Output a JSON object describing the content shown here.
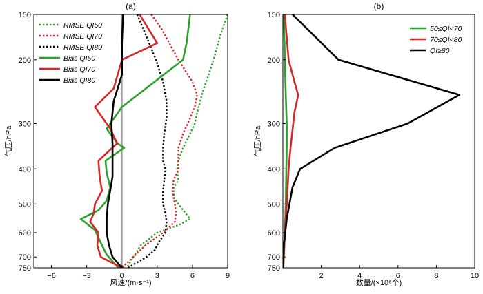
{
  "chart_data": [
    {
      "type": "line",
      "title": "(a)",
      "xlabel": "风速/(m·s⁻¹)",
      "ylabel": "气压/hPa",
      "xlim": [
        -7.5,
        9
      ],
      "ylim": [
        750,
        150
      ],
      "y_scale": "log",
      "x_ticks": [
        -6,
        -3,
        0,
        3,
        6,
        9
      ],
      "y_ticks": [
        150,
        200,
        300,
        400,
        500,
        600,
        700,
        750
      ],
      "reference_line": {
        "x": 0,
        "color": "#a0a0a0"
      },
      "legend_position": "top-left",
      "series": [
        {
          "name": "RMSE QI50",
          "color": "#2ca02c",
          "dash": "dotted",
          "x": [
            9.0,
            8.4,
            7.8,
            6.8,
            6.4,
            6.2,
            5.8,
            5.2,
            4.8,
            4.7,
            4.8,
            4.4,
            4.4,
            4.8,
            5.8,
            4.9,
            3.0,
            1.6,
            0.4
          ],
          "y": [
            150,
            170,
            200,
            250,
            280,
            300,
            320,
            350,
            380,
            400,
            430,
            450,
            480,
            500,
            550,
            570,
            600,
            650,
            750
          ]
        },
        {
          "name": "RMSE QI70",
          "color": "#d62728",
          "dash": "dotted",
          "x": [
            2.5,
            3.4,
            4.8,
            6.0,
            6.4,
            6.2,
            5.8,
            5.2,
            4.8,
            4.8,
            4.8,
            4.4,
            4.3,
            4.5,
            4.6,
            4.5,
            3.5,
            2.0,
            0.0
          ],
          "y": [
            150,
            165,
            200,
            230,
            250,
            270,
            290,
            320,
            350,
            380,
            400,
            430,
            460,
            500,
            530,
            560,
            600,
            650,
            750
          ]
        },
        {
          "name": "RMSE QI80",
          "color": "#000000",
          "dash": "dotted",
          "x": [
            1.3,
            2.0,
            2.9,
            3.5,
            3.8,
            3.8,
            3.6,
            3.5,
            3.5,
            3.7,
            3.6,
            3.5,
            3.5,
            3.7,
            3.8,
            3.7,
            3.1,
            2.8,
            2.1,
            0.5
          ],
          "y": [
            150,
            170,
            200,
            230,
            260,
            290,
            320,
            350,
            380,
            400,
            430,
            460,
            500,
            530,
            560,
            600,
            640,
            670,
            700,
            750
          ]
        },
        {
          "name": "Bias QI50",
          "color": "#2ca02c",
          "dash": "solid",
          "x": [
            5.8,
            5.5,
            5.2,
            0.0,
            -1.3,
            -0.4,
            0.2,
            -1.4,
            -1.3,
            -1.0,
            -1.3,
            -2.0,
            -3.5,
            -2.3,
            -1.8,
            -1.3,
            -0.3
          ],
          "y": [
            150,
            180,
            200,
            270,
            310,
            340,
            350,
            380,
            410,
            450,
            490,
            520,
            550,
            590,
            640,
            690,
            750
          ]
        },
        {
          "name": "Bias QI70",
          "color": "#d62728",
          "dash": "solid",
          "x": [
            1.5,
            3.0,
            0.0,
            -0.7,
            -2.3,
            -1.0,
            -0.4,
            -2.0,
            -1.9,
            -1.7,
            -2.3,
            -2.4,
            -2.7,
            -2.0,
            -2.1,
            -1.8,
            0.0
          ],
          "y": [
            150,
            180,
            200,
            240,
            270,
            310,
            340,
            380,
            420,
            460,
            500,
            530,
            560,
            600,
            650,
            700,
            750
          ]
        },
        {
          "name": "Bias QI80",
          "color": "#000000",
          "dash": "solid",
          "x": [
            0.1,
            0.0,
            0.0,
            -0.7,
            -0.9,
            -0.8,
            -0.8,
            -0.8,
            -1.0,
            -1.2,
            -1.3,
            -1.3,
            -1.1,
            -0.8,
            0.0
          ],
          "y": [
            150,
            180,
            220,
            260,
            300,
            340,
            380,
            420,
            460,
            500,
            550,
            600,
            650,
            700,
            750
          ]
        }
      ]
    },
    {
      "type": "line",
      "title": "(b)",
      "xlabel": "数量/(×10⁶个)",
      "ylabel": "气压/hPa",
      "xlim": [
        0,
        10
      ],
      "ylim": [
        750,
        150
      ],
      "y_scale": "log",
      "x_ticks": [
        2,
        4,
        6,
        8,
        10
      ],
      "y_ticks": [
        150,
        200,
        300,
        400,
        500,
        600,
        700,
        750
      ],
      "legend_position": "top-right",
      "series": [
        {
          "name": "50≤QI<70",
          "color": "#2ca02c",
          "dash": "solid",
          "x": [
            0.05,
            0.1,
            0.15,
            0.2,
            0.2,
            0.18,
            0.15,
            0.1,
            0.05,
            0.02
          ],
          "y": [
            150,
            200,
            250,
            300,
            350,
            400,
            500,
            600,
            700,
            750
          ]
        },
        {
          "name": "70≤QI<80",
          "color": "#d62728",
          "dash": "solid",
          "x": [
            0.1,
            0.3,
            0.6,
            0.8,
            0.6,
            0.4,
            0.3,
            0.2,
            0.1,
            0.05,
            0.02
          ],
          "y": [
            150,
            200,
            230,
            250,
            280,
            350,
            400,
            500,
            600,
            700,
            750
          ]
        },
        {
          "name": "QI≥80",
          "color": "#000000",
          "dash": "solid",
          "x": [
            0.5,
            2.9,
            9.2,
            6.5,
            2.7,
            0.9,
            0.5,
            0.2,
            0.05,
            0.0
          ],
          "y": [
            150,
            200,
            250,
            300,
            350,
            400,
            450,
            550,
            650,
            750
          ]
        }
      ]
    }
  ]
}
